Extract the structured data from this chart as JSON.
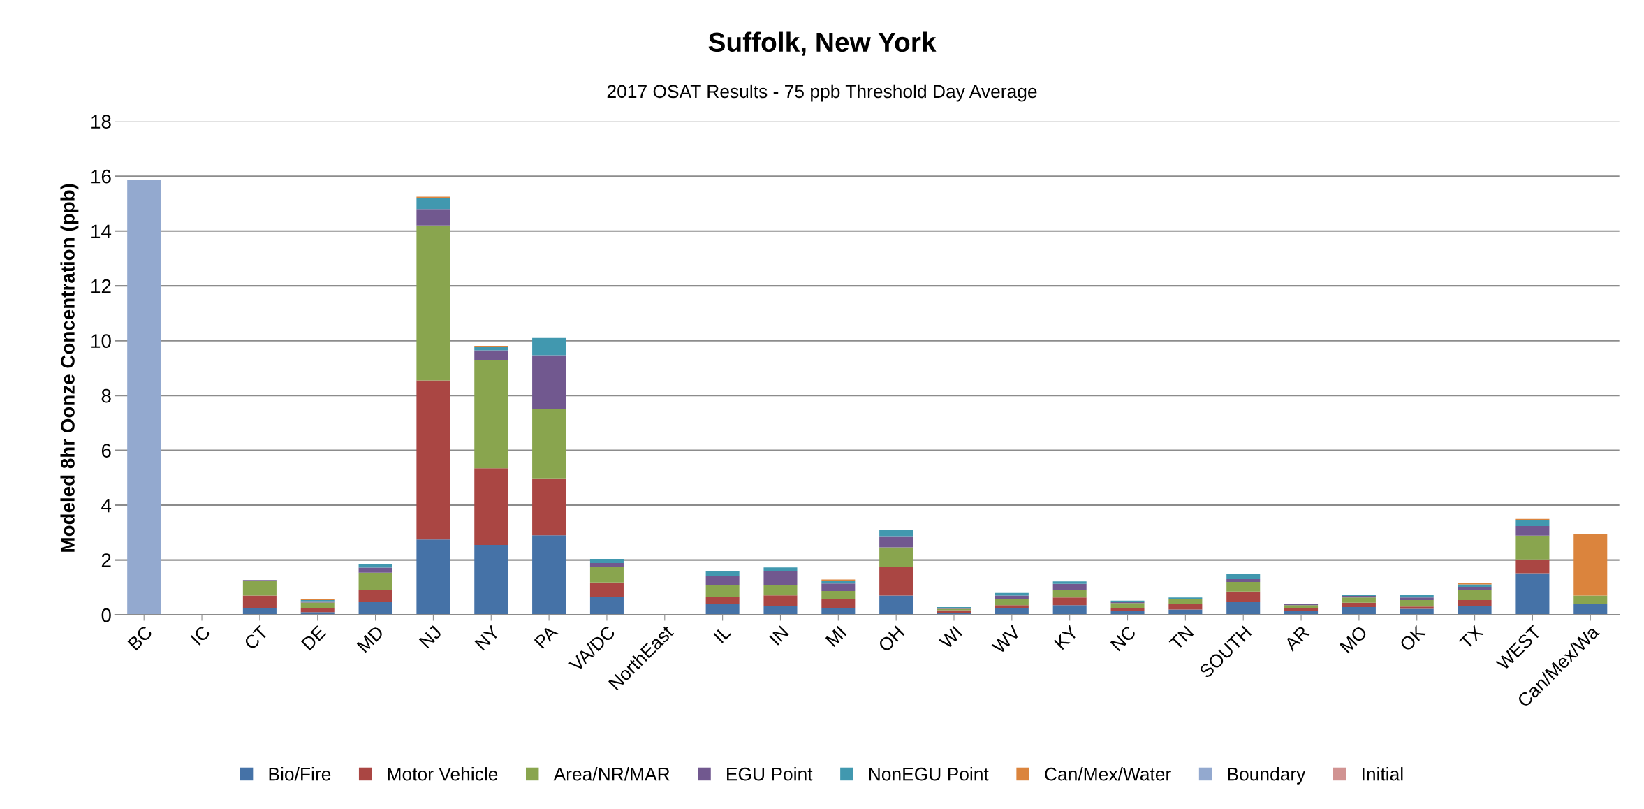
{
  "chart_data": {
    "type": "bar",
    "stacked": true,
    "title": "Suffolk, New York",
    "subtitle": "2017 OSAT Results - 75 ppb Threshold Day Average",
    "ylabel": "Modeled 8hr Oonze Concentration (ppb)",
    "categories": [
      "BC",
      "IC",
      "CT",
      "DE",
      "MD",
      "NJ",
      "NY",
      "PA",
      "VA/DC",
      "NorthEast",
      "IL",
      "IN",
      "MI",
      "OH",
      "WI",
      "WV",
      "KY",
      "NC",
      "TN",
      "SOUTH",
      "AR",
      "MO",
      "OK",
      "TX",
      "WEST",
      "Can/Mex/Wa"
    ],
    "series": [
      {
        "name": "Bio/Fire",
        "color": "#4572a7",
        "values": [
          0,
          0,
          0.25,
          0.1,
          0.48,
          2.75,
          2.55,
          2.9,
          0.65,
          0,
          0.4,
          0.33,
          0.24,
          0.7,
          0.07,
          0.26,
          0.35,
          0.15,
          0.19,
          0.46,
          0.15,
          0.28,
          0.22,
          0.33,
          1.52,
          0.41
        ]
      },
      {
        "name": "Motor Vehicle",
        "color": "#aa4643",
        "values": [
          0,
          0,
          0.45,
          0.15,
          0.44,
          5.8,
          2.8,
          2.08,
          0.53,
          0,
          0.25,
          0.38,
          0.33,
          1.04,
          0.1,
          0.09,
          0.28,
          0.11,
          0.22,
          0.39,
          0.09,
          0.16,
          0.08,
          0.21,
          0.5,
          0
        ]
      },
      {
        "name": "Area/NR/MAR",
        "color": "#89a54e",
        "values": [
          0,
          0,
          0.55,
          0.2,
          0.62,
          5.65,
          3.95,
          2.52,
          0.58,
          0.03,
          0.43,
          0.37,
          0.3,
          0.72,
          0.05,
          0.24,
          0.28,
          0.17,
          0.15,
          0.35,
          0.11,
          0.19,
          0.24,
          0.37,
          0.87,
          0.29
        ]
      },
      {
        "name": "EGU Point",
        "color": "#71588f",
        "values": [
          0,
          0,
          0.02,
          0.05,
          0.18,
          0.6,
          0.35,
          1.97,
          0.13,
          0,
          0.35,
          0.5,
          0.27,
          0.41,
          0.04,
          0.11,
          0.22,
          0.05,
          0.03,
          0.1,
          0.04,
          0.06,
          0.09,
          0.11,
          0.35,
          0
        ]
      },
      {
        "name": "NonEGU Point",
        "color": "#4198af",
        "values": [
          0,
          0,
          0,
          0.04,
          0.14,
          0.4,
          0.13,
          0.63,
          0.15,
          0,
          0.17,
          0.15,
          0.1,
          0.24,
          0.02,
          0.1,
          0.09,
          0.04,
          0.04,
          0.18,
          0.02,
          0.03,
          0.09,
          0.09,
          0.22,
          0
        ]
      },
      {
        "name": "Can/Mex/Water",
        "color": "#db843d",
        "values": [
          0,
          0,
          0,
          0.02,
          0,
          0.05,
          0.03,
          0,
          0,
          0,
          0,
          0,
          0.05,
          0,
          0,
          0,
          0,
          0,
          0,
          0,
          0,
          0,
          0,
          0.04,
          0.04,
          2.24
        ]
      },
      {
        "name": "Boundary",
        "color": "#93a9cf",
        "values": [
          15.85,
          0,
          0,
          0,
          0,
          0,
          0,
          0,
          0,
          0,
          0,
          0,
          0,
          0,
          0,
          0,
          0,
          0,
          0,
          0,
          0,
          0,
          0,
          0,
          0,
          0
        ]
      },
      {
        "name": "Initial",
        "color": "#d19392",
        "values": [
          0,
          0.03,
          0,
          0,
          0,
          0,
          0,
          0,
          0,
          0,
          0,
          0,
          0,
          0,
          0,
          0,
          0,
          0,
          0,
          0,
          0,
          0,
          0,
          0,
          0,
          0
        ]
      }
    ],
    "ylim": [
      0,
      18
    ],
    "yticks": [
      0,
      2,
      4,
      6,
      8,
      10,
      12,
      14,
      16,
      18
    ],
    "grid": "y",
    "legend": "bottom"
  }
}
